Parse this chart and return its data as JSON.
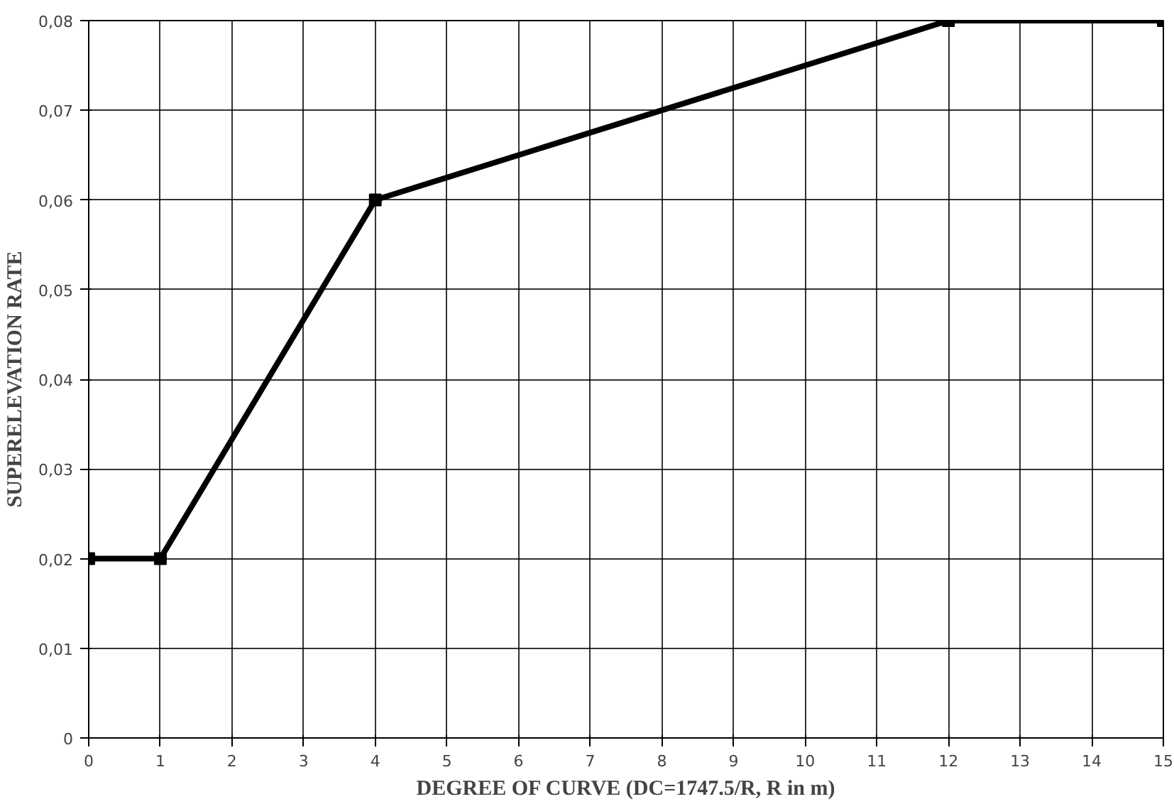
{
  "chart_data": {
    "type": "line",
    "xlabel": "DEGREE OF CURVE (DC=1747.5/R, R in m)",
    "ylabel": "SUPERELEVATION RATE",
    "x": [
      0,
      1,
      4,
      12,
      15
    ],
    "series": [
      {
        "color": "#000000",
        "values": [
          0.02,
          0.02,
          0.06,
          0.08,
          0.08
        ]
      }
    ],
    "xlim": [
      0,
      15
    ],
    "xticks": [
      0,
      1,
      2,
      3,
      4,
      5,
      6,
      7,
      8,
      9,
      10,
      11,
      12,
      13,
      14,
      15
    ],
    "ylim": [
      0,
      0.08
    ],
    "yticks": [
      0,
      {
        "value": 0.01,
        "label": "0,01"
      },
      {
        "value": 0.02,
        "label": "0,02"
      },
      {
        "value": 0.03,
        "label": "0,03"
      },
      {
        "value": 0.04,
        "label": "0,04"
      },
      {
        "value": 0.05,
        "label": "0,05"
      },
      {
        "value": 0.06,
        "label": "0,06"
      },
      {
        "value": 0.07,
        "label": "0,07"
      },
      {
        "value": 0.08,
        "label": "0,08"
      }
    ],
    "grid": true,
    "marker": "square",
    "line_style": "solid"
  }
}
